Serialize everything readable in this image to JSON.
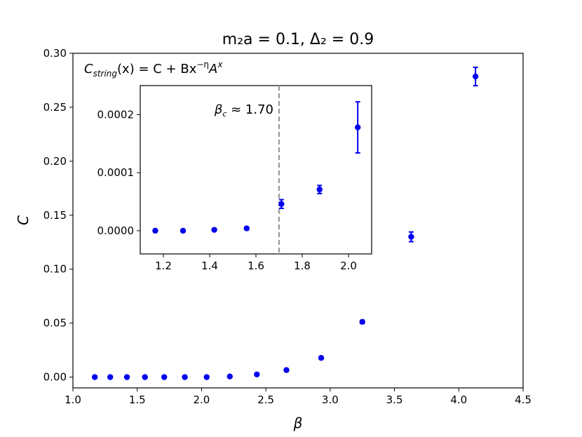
{
  "chart_data": [
    {
      "type": "scatter",
      "title": "m₂a = 0.1, Δ₂ = 0.9",
      "xlabel": "β",
      "ylabel": "C",
      "xlim": [
        1.0,
        4.5
      ],
      "ylim": [
        -0.01,
        0.3
      ],
      "xticks": [
        "1.0",
        "1.5",
        "2.0",
        "2.5",
        "3.0",
        "3.5",
        "4.0",
        "4.5"
      ],
      "yticks": [
        "0.00",
        "0.05",
        "0.10",
        "0.15",
        "0.20",
        "0.25",
        "0.30"
      ],
      "annotation": "C_string(x) = C + Bx^{−η}A^x",
      "annotation_parts": {
        "c": "C",
        "sub": "string",
        "mid": "(x) = C + Bx",
        "exp1": "−η",
        "a": "A",
        "exp2": "x"
      },
      "marker_color": "#0000ee",
      "grid": false,
      "series": [
        {
          "x": [
            1.17,
            1.29,
            1.42,
            1.56,
            1.71,
            1.87,
            2.04,
            2.22,
            2.43,
            2.66,
            2.93,
            3.25,
            3.63,
            4.13
          ],
          "y": [
            0.0,
            0.0,
            0.0,
            0.0,
            0.0,
            0.0,
            0.0,
            0.0006,
            0.0025,
            0.0065,
            0.0178,
            0.0512,
            0.13,
            0.2785
          ],
          "err": [
            0.0,
            0.0,
            0.0,
            0.0,
            0.0,
            0.0,
            0.0,
            0.0,
            0.0,
            0.0,
            0.0,
            0.0015,
            0.0045,
            0.0085
          ]
        }
      ]
    },
    {
      "type": "scatter",
      "inset": true,
      "xlim": [
        1.1,
        2.1
      ],
      "ylim": [
        -4e-05,
        0.00025
      ],
      "xticks": [
        "1.2",
        "1.4",
        "1.6",
        "1.8",
        "2.0"
      ],
      "yticks": [
        "0.0000",
        "0.0001",
        "0.0002"
      ],
      "vline_x": 1.7,
      "vline_label": "β_c ≈ 1.70",
      "vline_label_parts": {
        "b": "β",
        "sub": "c",
        "rest": " ≈ 1.70"
      },
      "vline_color": "#999999",
      "marker_color": "#0000ee",
      "series": [
        {
          "x": [
            1.165,
            1.285,
            1.42,
            1.56,
            1.71,
            1.875,
            2.04
          ],
          "y": [
            0.0,
            0.0,
            1.5e-06,
            4e-06,
            4.6e-05,
            7.1e-05,
            0.000178
          ],
          "err": [
            0.0,
            0.0,
            0.0,
            2.5e-06,
            7.5e-06,
            7e-06,
            4.4e-05
          ]
        }
      ]
    }
  ]
}
